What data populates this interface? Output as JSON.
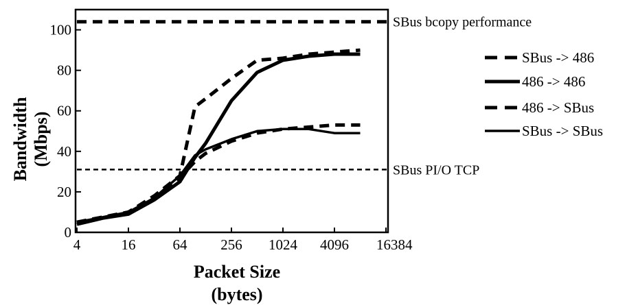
{
  "chart_data": {
    "type": "line",
    "x": [
      4,
      8,
      16,
      32,
      64,
      96,
      128,
      256,
      512,
      1024,
      2048,
      4096,
      8192
    ],
    "x_tick_labels": [
      "4",
      "16",
      "64",
      "256",
      "1024",
      "4096",
      "16384"
    ],
    "x_ticks": [
      4,
      16,
      64,
      256,
      1024,
      4096,
      16384
    ],
    "x_scale": "log",
    "xlim": [
      4,
      16384
    ],
    "y_tick_labels": [
      "0",
      "20",
      "40",
      "60",
      "80",
      "100"
    ],
    "y_ticks": [
      0,
      20,
      40,
      60,
      80,
      100
    ],
    "ylim": [
      0,
      110
    ],
    "xlabel_line1": "Packet Size",
    "xlabel_line2": "(bytes)",
    "ylabel_line1": "Bandwidth",
    "ylabel_line2": "(Mbps)",
    "grid": false,
    "legend_position": "right",
    "series": [
      {
        "name": "SBus -> 486",
        "style": "dashed",
        "width": 5,
        "values": [
          5,
          7.5,
          10,
          18,
          28,
          62,
          66,
          76,
          85,
          86,
          88,
          89,
          90
        ]
      },
      {
        "name": "486 -> 486",
        "style": "solid",
        "width": 5,
        "values": [
          4,
          7,
          9,
          16,
          25,
          37,
          44,
          65,
          79,
          85,
          87,
          88,
          88
        ]
      },
      {
        "name": "486 -> SBus",
        "style": "dashed",
        "width": 5,
        "values": [
          5,
          7.5,
          10,
          17,
          27,
          35,
          39,
          45,
          49,
          51,
          52,
          53,
          53
        ]
      },
      {
        "name": "SBus -> SBus",
        "style": "solid",
        "width": 3.5,
        "values": [
          5,
          7.5,
          10,
          17,
          28,
          38,
          41,
          46,
          50,
          51,
          51,
          49,
          49
        ]
      }
    ],
    "reference_lines": [
      {
        "label": "SBus bcopy performance",
        "y": 104,
        "style": "dashed",
        "width": 5
      },
      {
        "label": "SBus PI/O TCP",
        "y": 31,
        "style": "dotted",
        "width": 2.5
      }
    ]
  }
}
